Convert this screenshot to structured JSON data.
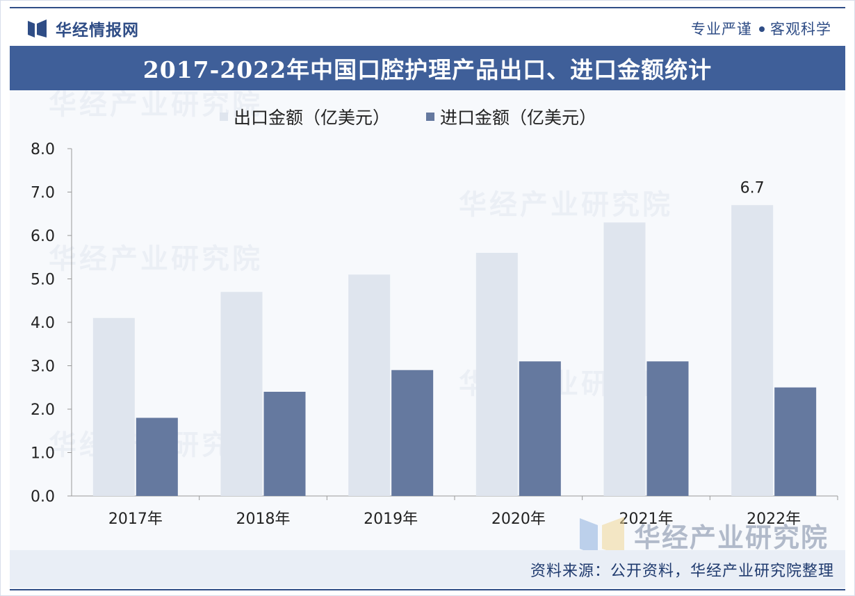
{
  "header": {
    "brand_name": "华经情报网",
    "slogan_left": "专业严谨",
    "slogan_right": "客观科学"
  },
  "watermark": {
    "text": "华经产业研究院"
  },
  "source": {
    "text": "资料来源：公开资料，华经产业研究院整理"
  },
  "colors": {
    "export": "#dfe5ee",
    "import": "#65799f",
    "title_bar": "#3f5f99",
    "brand": "#2f4d86"
  },
  "chart_data": {
    "type": "bar",
    "title": "2017-2022年中国口腔护理产品出口、进口金额统计",
    "categories": [
      "2017年",
      "2018年",
      "2019年",
      "2020年",
      "2021年",
      "2022年"
    ],
    "series": [
      {
        "name": "出口金额（亿美元）",
        "values": [
          4.1,
          4.7,
          5.1,
          5.6,
          6.3,
          6.7
        ]
      },
      {
        "name": "进口金额（亿美元）",
        "values": [
          1.8,
          2.4,
          2.9,
          3.1,
          3.1,
          2.5
        ]
      }
    ],
    "data_labels": [
      {
        "series": 0,
        "index": 5,
        "text": "6.7"
      }
    ],
    "yticks": [
      "0.0",
      "1.0",
      "2.0",
      "3.0",
      "4.0",
      "5.0",
      "6.0",
      "7.0",
      "8.0"
    ],
    "ylim": [
      0,
      8
    ],
    "grid": false,
    "legend_position": "top"
  }
}
